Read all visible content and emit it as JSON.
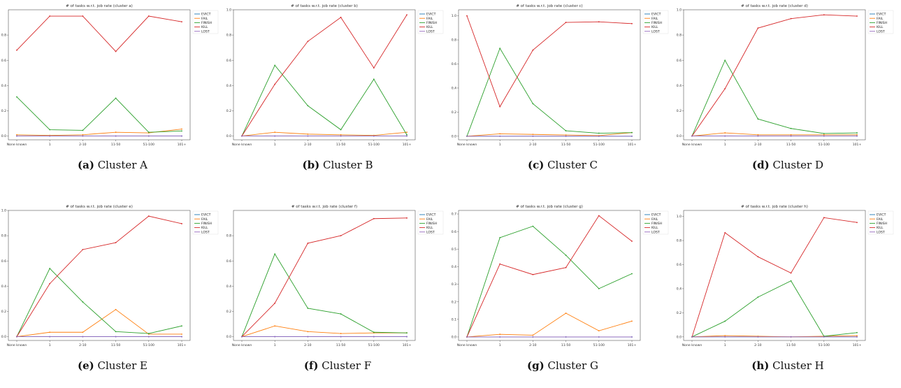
{
  "figure": {
    "legend_names": [
      "EVICT",
      "FAIL",
      "FINISH",
      "KILL",
      "LOST"
    ],
    "colors": {
      "EVICT": "#1f77b4",
      "FAIL": "#ff7f0e",
      "FINISH": "#2ca02c",
      "KILL": "#d62728",
      "LOST": "#9467bd"
    }
  },
  "chart_data": [
    {
      "type": "line",
      "title": "# of tasks w.r.t. job rate (cluster a)",
      "caption_label": "(a)",
      "caption_text": "Cluster A",
      "categories": [
        "None known",
        "1",
        "2-10",
        "11-50",
        "51-100",
        "101+"
      ],
      "ylim": [
        -0.03,
        1.0
      ],
      "yticks": [
        0.0,
        0.2,
        0.4,
        0.6,
        0.8
      ],
      "legend": "top-right",
      "series": [
        {
          "name": "EVICT",
          "values": [
            0.0,
            0.0,
            0.0,
            0.0,
            0.0,
            0.0
          ]
        },
        {
          "name": "FAIL",
          "values": [
            0.01,
            0.005,
            0.01,
            0.03,
            0.025,
            0.055
          ]
        },
        {
          "name": "FINISH",
          "values": [
            0.31,
            0.05,
            0.045,
            0.3,
            0.03,
            0.04
          ]
        },
        {
          "name": "KILL",
          "values": [
            0.68,
            0.95,
            0.95,
            0.67,
            0.95,
            0.905
          ]
        },
        {
          "name": "LOST",
          "values": [
            0.0,
            0.0,
            0.0,
            0.0,
            0.0,
            0.0
          ]
        }
      ]
    },
    {
      "type": "line",
      "title": "# of tasks w.r.t. job rate (cluster b)",
      "caption_label": "(b)",
      "caption_text": "Cluster B",
      "categories": [
        "None known",
        "1",
        "2-10",
        "11-50",
        "51-100",
        "101+"
      ],
      "ylim": [
        -0.03,
        1.0
      ],
      "yticks": [
        0.0,
        0.2,
        0.4,
        0.6,
        0.8,
        1.0
      ],
      "legend": "top-right",
      "series": [
        {
          "name": "EVICT",
          "values": [
            0.0,
            0.0,
            0.0,
            0.0,
            0.0,
            0.0
          ]
        },
        {
          "name": "FAIL",
          "values": [
            0.0,
            0.03,
            0.015,
            0.01,
            0.005,
            0.03
          ]
        },
        {
          "name": "FINISH",
          "values": [
            0.0,
            0.56,
            0.24,
            0.05,
            0.45,
            0.01
          ]
        },
        {
          "name": "KILL",
          "values": [
            0.0,
            0.41,
            0.75,
            0.94,
            0.54,
            0.96
          ]
        },
        {
          "name": "LOST",
          "values": [
            0.0,
            0.0,
            0.0,
            0.0,
            0.0,
            0.0
          ]
        }
      ]
    },
    {
      "type": "line",
      "title": "# of tasks w.r.t. job rate (cluster c)",
      "caption_label": "(c)",
      "caption_text": "Cluster C",
      "categories": [
        "None known",
        "1",
        "2-10",
        "11-50",
        "51-100",
        "101+"
      ],
      "ylim": [
        -0.03,
        1.05
      ],
      "yticks": [
        0.0,
        0.2,
        0.4,
        0.6,
        0.8,
        1.0
      ],
      "legend": "top-right",
      "series": [
        {
          "name": "EVICT",
          "values": [
            0.0,
            0.0,
            0.0,
            0.0,
            0.0,
            0.0
          ]
        },
        {
          "name": "FAIL",
          "values": [
            0.0,
            0.02,
            0.015,
            0.01,
            0.005,
            0.03
          ]
        },
        {
          "name": "FINISH",
          "values": [
            0.0,
            0.73,
            0.27,
            0.045,
            0.025,
            0.03
          ]
        },
        {
          "name": "KILL",
          "values": [
            1.0,
            0.245,
            0.715,
            0.945,
            0.95,
            0.935
          ]
        },
        {
          "name": "LOST",
          "values": [
            0.0,
            0.0,
            0.0,
            0.0,
            0.0,
            0.0
          ]
        }
      ]
    },
    {
      "type": "line",
      "title": "# of tasks w.r.t. job rate (cluster d)",
      "caption_label": "(d)",
      "caption_text": "Cluster D",
      "categories": [
        "None known",
        "1",
        "2-10",
        "11-50",
        "51-100",
        "101+"
      ],
      "ylim": [
        -0.03,
        1.0
      ],
      "yticks": [
        0.0,
        0.2,
        0.4,
        0.6,
        0.8,
        1.0
      ],
      "legend": "top-right",
      "series": [
        {
          "name": "EVICT",
          "values": [
            0.0,
            0.0,
            0.0,
            0.0,
            0.0,
            0.0
          ]
        },
        {
          "name": "FAIL",
          "values": [
            0.0,
            0.025,
            0.01,
            0.01,
            0.01,
            0.01
          ]
        },
        {
          "name": "FINISH",
          "values": [
            0.0,
            0.6,
            0.135,
            0.06,
            0.02,
            0.025
          ]
        },
        {
          "name": "KILL",
          "values": [
            0.0,
            0.375,
            0.855,
            0.93,
            0.96,
            0.95
          ]
        },
        {
          "name": "LOST",
          "values": [
            0.0,
            0.0,
            0.0,
            0.0,
            0.0,
            0.0
          ]
        }
      ]
    },
    {
      "type": "line",
      "title": "# of tasks w.r.t. job rate (cluster e)",
      "caption_label": "(e)",
      "caption_text": "Cluster E",
      "categories": [
        "None known",
        "1",
        "2-10",
        "11-50",
        "51-100",
        "101+"
      ],
      "ylim": [
        -0.03,
        1.0
      ],
      "yticks": [
        0.0,
        0.2,
        0.4,
        0.6,
        0.8,
        1.0
      ],
      "legend": "top-right",
      "series": [
        {
          "name": "EVICT",
          "values": [
            0.0,
            0.0,
            0.0,
            0.0,
            0.0,
            0.0
          ]
        },
        {
          "name": "FAIL",
          "values": [
            0.0,
            0.035,
            0.035,
            0.215,
            0.02,
            0.02
          ]
        },
        {
          "name": "FINISH",
          "values": [
            0.0,
            0.54,
            0.275,
            0.04,
            0.025,
            0.085
          ]
        },
        {
          "name": "KILL",
          "values": [
            0.0,
            0.42,
            0.69,
            0.745,
            0.955,
            0.895
          ]
        },
        {
          "name": "LOST",
          "values": [
            0.0,
            0.0,
            0.0,
            0.0,
            0.0,
            0.0
          ]
        }
      ]
    },
    {
      "type": "line",
      "title": "# of tasks w.r.t. job rate (cluster f)",
      "caption_label": "(f)",
      "caption_text": "Cluster F",
      "categories": [
        "None known",
        "1",
        "2-10",
        "11-50",
        "51-100",
        "101+"
      ],
      "ylim": [
        -0.03,
        1.0
      ],
      "yticks": [
        0.0,
        0.2,
        0.4,
        0.6,
        0.8
      ],
      "legend": "top-right",
      "series": [
        {
          "name": "EVICT",
          "values": [
            0.0,
            0.0,
            0.0,
            0.0,
            0.0,
            0.0
          ]
        },
        {
          "name": "FAIL",
          "values": [
            0.0,
            0.085,
            0.04,
            0.025,
            0.03,
            0.03
          ]
        },
        {
          "name": "FINISH",
          "values": [
            0.0,
            0.655,
            0.225,
            0.18,
            0.035,
            0.03
          ]
        },
        {
          "name": "KILL",
          "values": [
            0.0,
            0.265,
            0.74,
            0.8,
            0.935,
            0.94
          ]
        },
        {
          "name": "LOST",
          "values": [
            0.0,
            0.0,
            0.0,
            0.0,
            0.0,
            0.0
          ]
        }
      ]
    },
    {
      "type": "line",
      "title": "# of tasks w.r.t. job rate (cluster g)",
      "caption_label": "(g)",
      "caption_text": "Cluster G",
      "categories": [
        "None known",
        "1",
        "2-10",
        "11-50",
        "51-100",
        "101+"
      ],
      "ylim": [
        -0.02,
        0.72
      ],
      "yticks": [
        0.0,
        0.1,
        0.2,
        0.3,
        0.4,
        0.5,
        0.6,
        0.7
      ],
      "legend": "top-right",
      "series": [
        {
          "name": "EVICT",
          "values": [
            0.0,
            0.0,
            0.0,
            0.0,
            0.0,
            0.0
          ]
        },
        {
          "name": "FAIL",
          "values": [
            0.0,
            0.015,
            0.01,
            0.135,
            0.035,
            0.09
          ]
        },
        {
          "name": "FINISH",
          "values": [
            0.0,
            0.565,
            0.63,
            0.465,
            0.275,
            0.36
          ]
        },
        {
          "name": "KILL",
          "values": [
            0.0,
            0.415,
            0.355,
            0.395,
            0.69,
            0.545
          ]
        },
        {
          "name": "LOST",
          "values": [
            0.0,
            0.0,
            0.0,
            0.0,
            0.0,
            0.0
          ]
        }
      ]
    },
    {
      "type": "line",
      "title": "# of tasks w.r.t. job rate (cluster h)",
      "caption_label": "(h)",
      "caption_text": "Cluster H",
      "categories": [
        "None known",
        "1",
        "2-10",
        "11-50",
        "51-100",
        "101+"
      ],
      "ylim": [
        -0.03,
        1.05
      ],
      "yticks": [
        0.0,
        0.2,
        0.4,
        0.6,
        0.8,
        1.0
      ],
      "legend": "top-right",
      "series": [
        {
          "name": "EVICT",
          "values": [
            0.0,
            0.0,
            0.0,
            0.0,
            0.0,
            0.0
          ]
        },
        {
          "name": "FAIL",
          "values": [
            0.0,
            0.01,
            0.005,
            0.0,
            0.005,
            0.01
          ]
        },
        {
          "name": "FINISH",
          "values": [
            0.0,
            0.13,
            0.33,
            0.465,
            0.005,
            0.035
          ]
        },
        {
          "name": "KILL",
          "values": [
            0.0,
            0.865,
            0.665,
            0.53,
            0.99,
            0.95
          ]
        },
        {
          "name": "LOST",
          "values": [
            0.0,
            0.0,
            0.0,
            0.0,
            0.0,
            0.0
          ]
        }
      ]
    }
  ]
}
